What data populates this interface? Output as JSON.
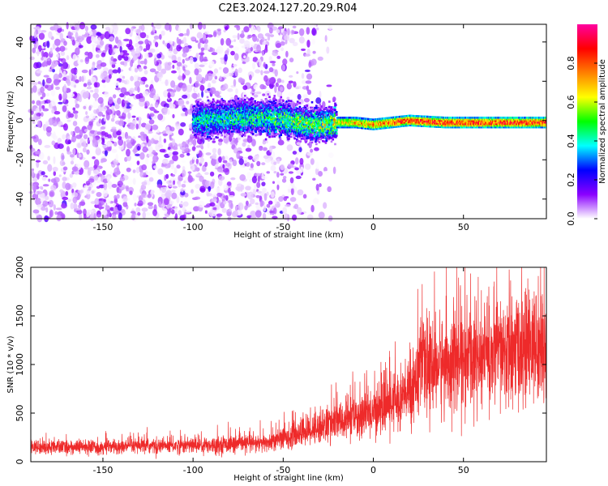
{
  "title": "C2E3.2024.127.20.29.R04",
  "chart_data": [
    {
      "type": "heatmap",
      "xlabel": "Height of straight line (km)",
      "ylabel": "Frequency (Hz)",
      "xlim": [
        -190,
        96
      ],
      "ylim": [
        -50,
        49
      ],
      "xticks": [
        -150,
        -100,
        -50,
        0,
        50
      ],
      "yticks": [
        -40,
        -20,
        0,
        20,
        40
      ],
      "colorbar": {
        "label": "Normalized spectral amplitude",
        "range": [
          0,
          1
        ],
        "ticks": [
          0.0,
          0.2,
          0.4,
          0.6,
          0.8
        ],
        "colormap": [
          "#ffffff",
          "#8a00ff",
          "#0000ff",
          "#00ffff",
          "#00ff00",
          "#ffff00",
          "#ff8000",
          "#ff0000",
          "#ff00a0"
        ]
      },
      "ridge": {
        "description_points_x": [
          -100,
          -75,
          -50,
          -40,
          -30,
          -20,
          -10,
          0,
          10,
          20,
          40,
          60,
          80,
          95
        ],
        "center_freq": [
          0,
          2,
          1,
          -1,
          -2,
          -1,
          -1,
          -2,
          -1,
          0,
          -1,
          -1,
          -1,
          -1
        ],
        "peak_amplitude": [
          0.45,
          0.5,
          0.55,
          0.6,
          0.6,
          0.7,
          0.75,
          0.8,
          0.85,
          0.9,
          0.9,
          0.9,
          0.9,
          0.9
        ]
      },
      "noise_region_x": [
        -190,
        -45
      ]
    },
    {
      "type": "line",
      "xlabel": "Height of straight line (km)",
      "ylabel": "SNR (10 * v/v)",
      "xlim": [
        -190,
        96
      ],
      "ylim": [
        0,
        2000
      ],
      "xticks": [
        -150,
        -100,
        -50,
        0,
        50
      ],
      "yticks": [
        0,
        500,
        1000,
        1500,
        2000
      ],
      "series": [
        {
          "color": "#ee2a2a",
          "trend_x": [
            -190,
            -150,
            -100,
            -60,
            -50,
            -40,
            -30,
            -20,
            -10,
            0,
            10,
            20,
            25,
            40,
            60,
            80,
            95
          ],
          "trend_y": [
            150,
            150,
            170,
            190,
            240,
            300,
            360,
            410,
            450,
            520,
            600,
            700,
            950,
            1020,
            1080,
            1150,
            1200
          ]
        }
      ]
    }
  ]
}
